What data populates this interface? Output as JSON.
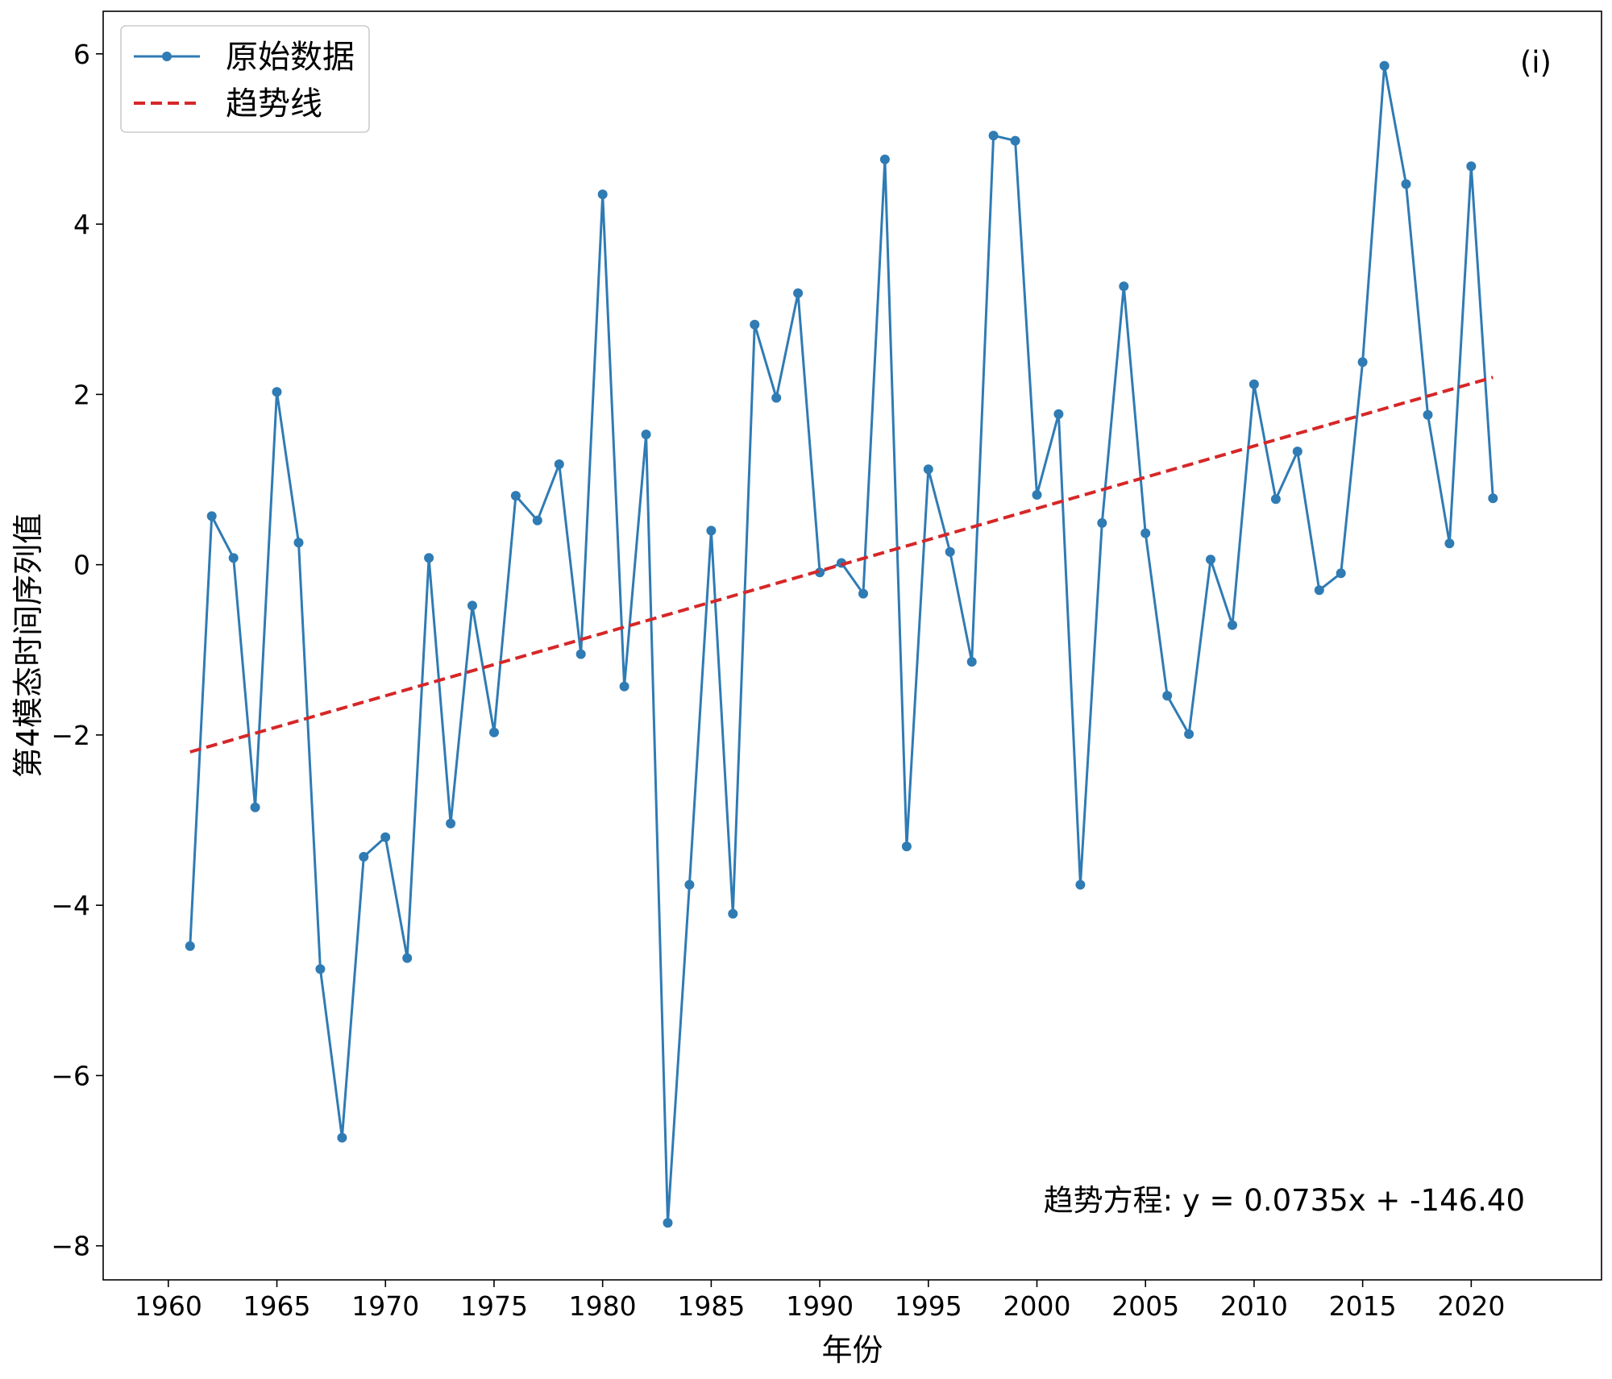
{
  "chart_data": {
    "type": "line",
    "xlabel": "年份",
    "ylabel": "第4模态时间序列值",
    "xlim": [
      1957,
      2026
    ],
    "ylim": [
      -8.4,
      6.5
    ],
    "xticks": [
      1960,
      1965,
      1970,
      1975,
      1980,
      1985,
      1990,
      1995,
      2000,
      2005,
      2010,
      2015,
      2020
    ],
    "yticks": [
      -8,
      -6,
      -4,
      -2,
      0,
      2,
      4,
      6
    ],
    "grid": false,
    "legend_position": "top-left",
    "panel_label": "(i)",
    "annotation": "趋势方程: y = 0.0735x + -146.40",
    "series": [
      {
        "name": "原始数据",
        "style": "line-with-markers",
        "color": "#2f7bb4",
        "x": [
          1961,
          1962,
          1963,
          1964,
          1965,
          1966,
          1967,
          1968,
          1969,
          1970,
          1971,
          1972,
          1973,
          1974,
          1975,
          1976,
          1977,
          1978,
          1979,
          1980,
          1981,
          1982,
          1983,
          1984,
          1985,
          1986,
          1987,
          1988,
          1989,
          1990,
          1991,
          1992,
          1993,
          1994,
          1995,
          1996,
          1997,
          1998,
          1999,
          2000,
          2001,
          2002,
          2003,
          2004,
          2005,
          2006,
          2007,
          2008,
          2009,
          2010,
          2011,
          2012,
          2013,
          2014,
          2015,
          2016,
          2017,
          2018,
          2019,
          2020,
          2021
        ],
        "values": [
          -4.48,
          0.57,
          0.08,
          -2.85,
          2.03,
          0.26,
          -4.75,
          -6.73,
          -3.43,
          -3.2,
          -4.62,
          0.08,
          -3.04,
          -0.48,
          -1.97,
          0.81,
          0.52,
          1.18,
          -1.05,
          4.35,
          -1.43,
          1.53,
          -7.73,
          -3.76,
          0.4,
          -4.1,
          2.82,
          1.96,
          3.19,
          -0.09,
          0.02,
          -0.34,
          4.76,
          -3.31,
          1.12,
          0.15,
          -1.14,
          5.04,
          4.98,
          0.82,
          1.77,
          -3.76,
          0.49,
          3.27,
          0.37,
          -1.54,
          -1.99,
          0.06,
          -0.71,
          2.12,
          0.77,
          1.33,
          -0.3,
          -0.1,
          2.38,
          5.86,
          4.47,
          1.76,
          0.25,
          4.68,
          0.78
        ]
      },
      {
        "name": "趋势线",
        "style": "dashed-line",
        "color": "#d62728",
        "x": [
          1961,
          2021
        ],
        "values": [
          -2.2,
          2.2
        ]
      }
    ]
  }
}
